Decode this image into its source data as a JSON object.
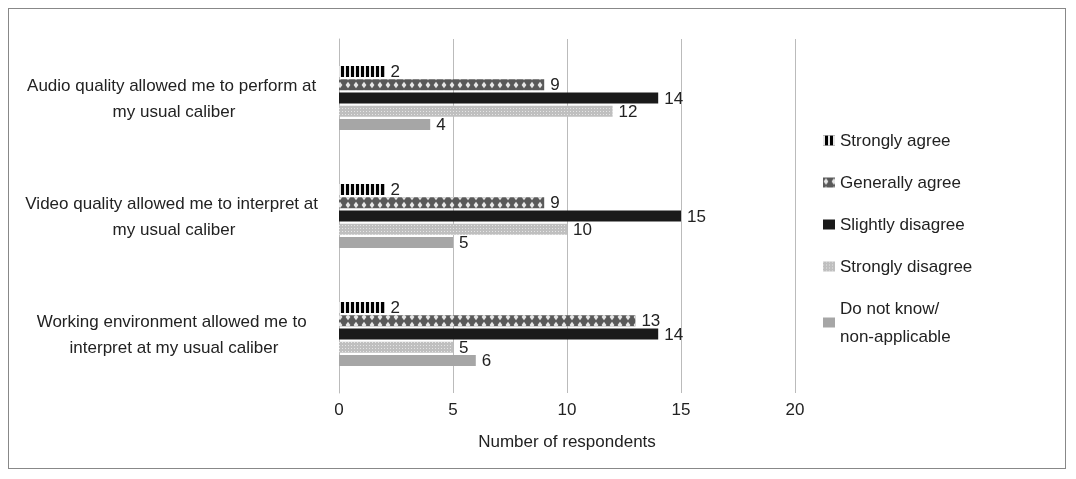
{
  "chart_data": {
    "type": "bar",
    "orientation": "horizontal",
    "xlabel": "Number of respondents",
    "categories": [
      "Audio quality allowed me to perform at my usual caliber",
      "Video quality allowed me to interpret at my usual caliber",
      "Working environment allowed me to interpret at my usual caliber"
    ],
    "series": [
      {
        "name": "Strongly agree",
        "color": "#000000",
        "values": [
          2,
          2,
          2
        ]
      },
      {
        "name": "Generally agree",
        "color": "#595959",
        "values": [
          9,
          9,
          13
        ]
      },
      {
        "name": "Slightly disagree",
        "color": "#1a1a1a",
        "values": [
          14,
          15,
          14
        ]
      },
      {
        "name": "Strongly disagree",
        "color": "#bfbfbf",
        "values": [
          12,
          10,
          5
        ]
      },
      {
        "name": "Do not know/ non-applicable",
        "color": "#a6a6a6",
        "values": [
          4,
          5,
          6
        ]
      }
    ],
    "xlim": [
      0,
      20
    ],
    "xticks": [
      0,
      5,
      10,
      15,
      20
    ],
    "grid": "x",
    "legend": "right",
    "data_labels": true
  }
}
